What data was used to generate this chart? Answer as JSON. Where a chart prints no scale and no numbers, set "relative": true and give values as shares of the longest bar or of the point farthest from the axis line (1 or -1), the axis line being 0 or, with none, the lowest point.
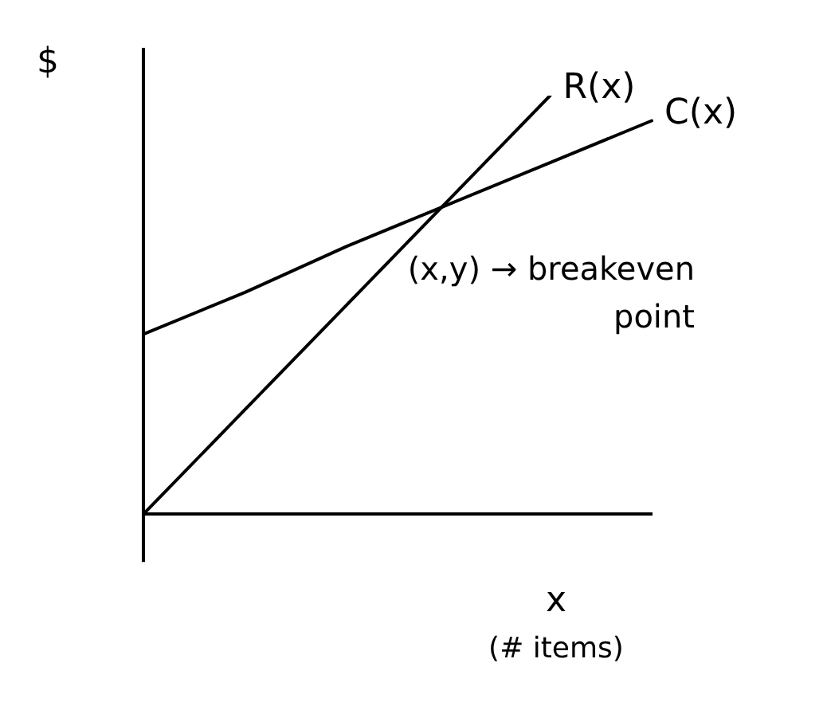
{
  "chart_data": {
    "type": "line",
    "relative": true,
    "ylabel": "$",
    "xlabel": "x (# items)",
    "categories": [
      null,
      null,
      null,
      null,
      null,
      null
    ],
    "series": [
      {
        "name": "R(x)",
        "color": "#000000",
        "values": [
          0,
          0.25,
          0.5,
          0.75,
          1,
          null
        ]
      },
      {
        "name": "C(x)",
        "color": "#000000",
        "values": [
          0.43,
          0.53,
          0.64,
          0.74,
          0.84,
          0.94
        ]
      }
    ],
    "annotations": [
      "(x,y) → breakeven point"
    ],
    "grid": false,
    "legend": false,
    "marker": "none",
    "line_style": "solid"
  }
}
